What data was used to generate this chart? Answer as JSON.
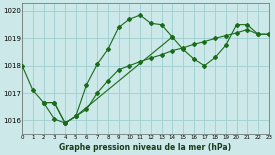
{
  "title": "Graphe pression niveau de la mer (hPa)",
  "bg_color": "#cce8e8",
  "grid_color": "#9ecece",
  "line_color": "#1a6b1a",
  "ylim": [
    1015.5,
    1020.3
  ],
  "xlim": [
    0,
    23
  ],
  "yticks": [
    1016,
    1017,
    1018,
    1019,
    1020
  ],
  "xticks": [
    0,
    1,
    2,
    3,
    4,
    5,
    6,
    7,
    8,
    9,
    10,
    11,
    12,
    13,
    14,
    15,
    16,
    17,
    18,
    19,
    20,
    21,
    22,
    23
  ],
  "line1_x": [
    0,
    1,
    2,
    3,
    4,
    5,
    6,
    7,
    8,
    9,
    10,
    11,
    12,
    13,
    14
  ],
  "line1_y": [
    1018.0,
    1017.1,
    1016.65,
    1016.05,
    1015.9,
    1016.15,
    1017.3,
    1018.05,
    1018.6,
    1019.4,
    1019.7,
    1019.85,
    1019.55,
    1019.5,
    1019.05
  ],
  "line2_x": [
    2,
    3,
    4,
    5,
    14,
    15,
    16,
    17,
    18,
    19,
    20,
    21,
    22,
    23
  ],
  "line2_y": [
    1016.65,
    1016.65,
    1015.9,
    1016.15,
    1019.05,
    1018.6,
    1018.25,
    1018.0,
    1018.3,
    1018.75,
    1019.5,
    1019.5,
    1019.15,
    1019.15
  ],
  "line3_x": [
    2,
    3,
    4,
    5,
    6,
    7,
    8,
    9,
    10,
    11,
    12,
    13,
    14,
    15,
    16,
    17,
    18,
    19,
    20,
    21,
    22,
    23
  ],
  "line3_y": [
    1016.65,
    1016.65,
    1015.9,
    1016.15,
    1016.4,
    1017.0,
    1017.45,
    1017.85,
    1018.0,
    1018.15,
    1018.28,
    1018.4,
    1018.55,
    1018.65,
    1018.78,
    1018.88,
    1019.0,
    1019.1,
    1019.2,
    1019.32,
    1019.15,
    1019.15
  ]
}
